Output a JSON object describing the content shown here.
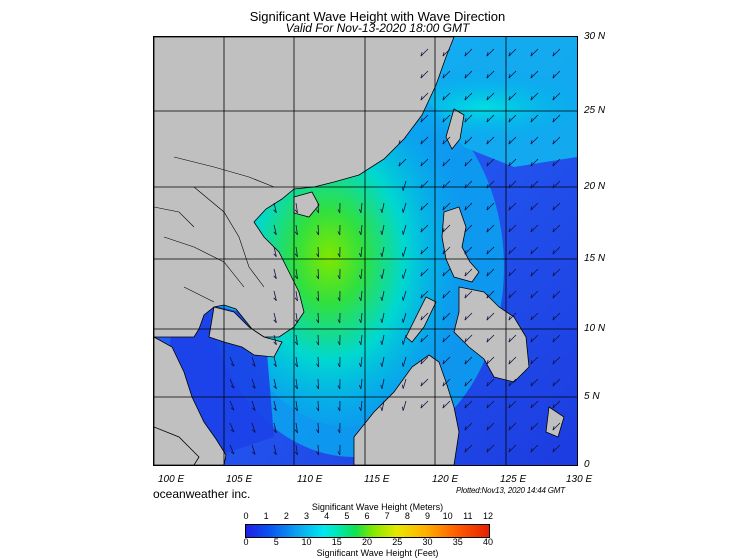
{
  "header": {
    "title": "Significant Wave Height with Wave Direction",
    "subtitle": "Valid For Nov-13-2020 18:00 GMT"
  },
  "map": {
    "lat_labels": [
      "30 N",
      "25 N",
      "20 N",
      "15 N",
      "10 N",
      "5 N",
      "0"
    ],
    "lon_labels": [
      "100 E",
      "105 E",
      "110 E",
      "115 E",
      "120 E",
      "125 E",
      "130 E"
    ],
    "land_color": "#c0c0c0",
    "ocean_low_color": "#1f3fe0",
    "ocean_high_color": "#7fe800",
    "arrow_direction": "mostly toward southwest"
  },
  "footer": {
    "credit": "oceanweather inc.",
    "plotted": "Plotted:Nov13, 2020 14:44 GMT"
  },
  "colorbar": {
    "meters_title": "Significant Wave Height (Meters)",
    "meters_ticks": [
      "0",
      "1",
      "2",
      "3",
      "4",
      "5",
      "6",
      "7",
      "8",
      "9",
      "10",
      "11",
      "12"
    ],
    "feet_ticks": [
      "0",
      "5",
      "10",
      "15",
      "20",
      "25",
      "30",
      "35",
      "40"
    ],
    "feet_title": "Significant Wave Height (Feet)"
  }
}
